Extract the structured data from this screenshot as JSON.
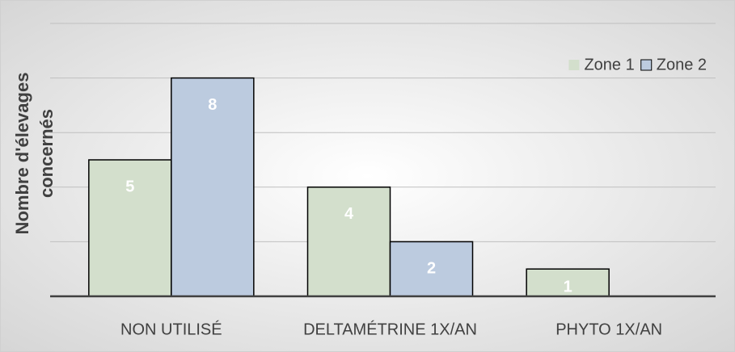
{
  "chart_data": {
    "type": "bar",
    "y_label": "Nombre d'élevages concernés",
    "categories": [
      "NON UTILISÉ",
      "DELTAMÉTRINE 1X/AN",
      "PHYTO 1X/AN"
    ],
    "series": [
      {
        "name": "Zone 1",
        "color": "#d3dfcc",
        "values": [
          5,
          4,
          1
        ]
      },
      {
        "name": "Zone 2",
        "color": "#bccbdf",
        "values": [
          8,
          2,
          null
        ]
      }
    ],
    "ylim": [
      0,
      10
    ],
    "yticks": [
      2,
      4,
      6,
      8,
      10
    ],
    "grid": true,
    "legend": "top-right"
  }
}
